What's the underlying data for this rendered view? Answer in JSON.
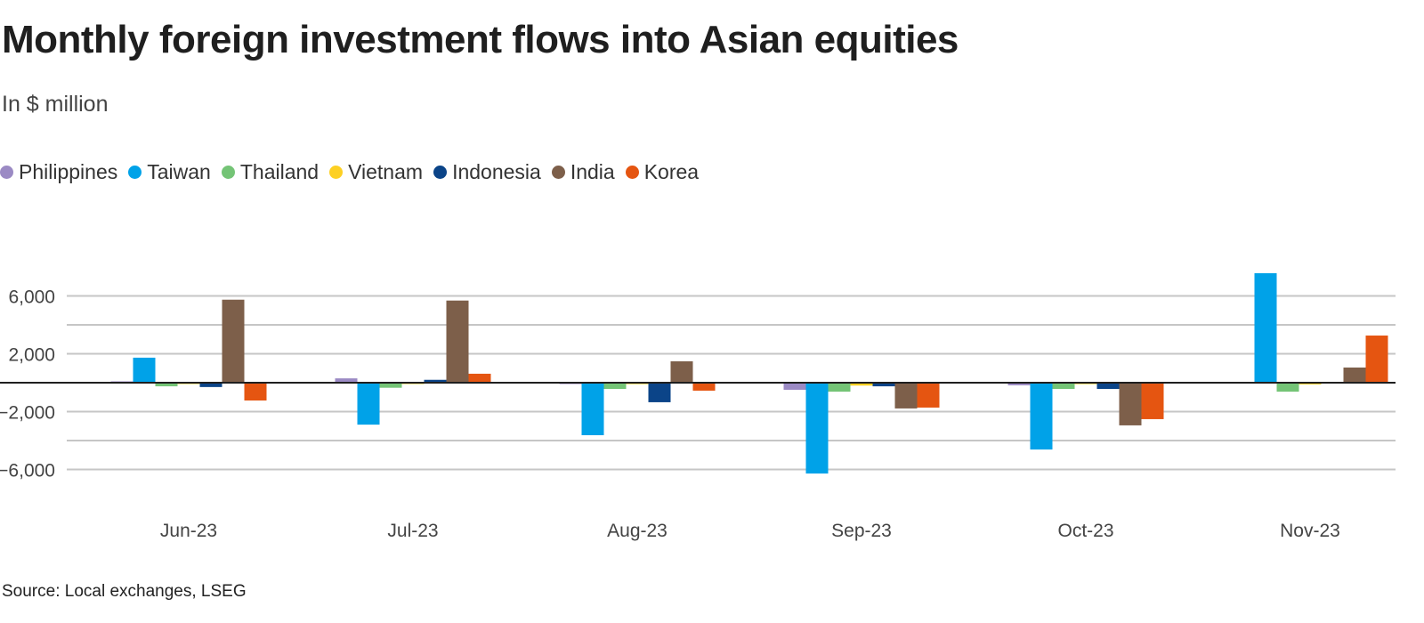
{
  "chart_data": {
    "type": "bar",
    "title": "Monthly foreign investment flows into Asian equities",
    "subtitle": "In $ million",
    "source": "Source: Local exchanges, LSEG",
    "xlabel": "",
    "ylabel": "",
    "ylim": [
      -8000,
      8000
    ],
    "yticks": [
      6000,
      2000,
      -2000,
      -6000
    ],
    "ytick_labels": [
      "6,000",
      "2,000",
      "−2,000",
      "−6,000"
    ],
    "gridlines": [
      6000,
      4000,
      2000,
      -2000,
      -4000,
      -6000
    ],
    "grid": true,
    "legend_position": "top-left",
    "categories": [
      "Jun-23",
      "Jul-23",
      "Aug-23",
      "Sep-23",
      "Oct-23",
      "Nov-23"
    ],
    "series": [
      {
        "name": "Philippines",
        "color": "#9b8ac4",
        "values": [
          60,
          300,
          -60,
          -490,
          -180,
          0
        ]
      },
      {
        "name": "Taiwan",
        "color": "#00a2e8",
        "values": [
          1730,
          -2900,
          -3630,
          -6280,
          -4620,
          7570
        ]
      },
      {
        "name": "Thailand",
        "color": "#74c476",
        "values": [
          -250,
          -350,
          -430,
          -620,
          -430,
          -620
        ]
      },
      {
        "name": "Vietnam",
        "color": "#fdd023",
        "values": [
          -30,
          -40,
          -100,
          -200,
          -100,
          -120
        ]
      },
      {
        "name": "Indonesia",
        "color": "#0b4488",
        "values": [
          -300,
          200,
          -1350,
          -250,
          -430,
          0
        ]
      },
      {
        "name": "India",
        "color": "#7d5f4a",
        "values": [
          5740,
          5680,
          1480,
          -1780,
          -2950,
          1050
        ]
      },
      {
        "name": "Korea",
        "color": "#e55511",
        "values": [
          -1230,
          620,
          -550,
          -1720,
          -2520,
          3260
        ]
      }
    ]
  }
}
